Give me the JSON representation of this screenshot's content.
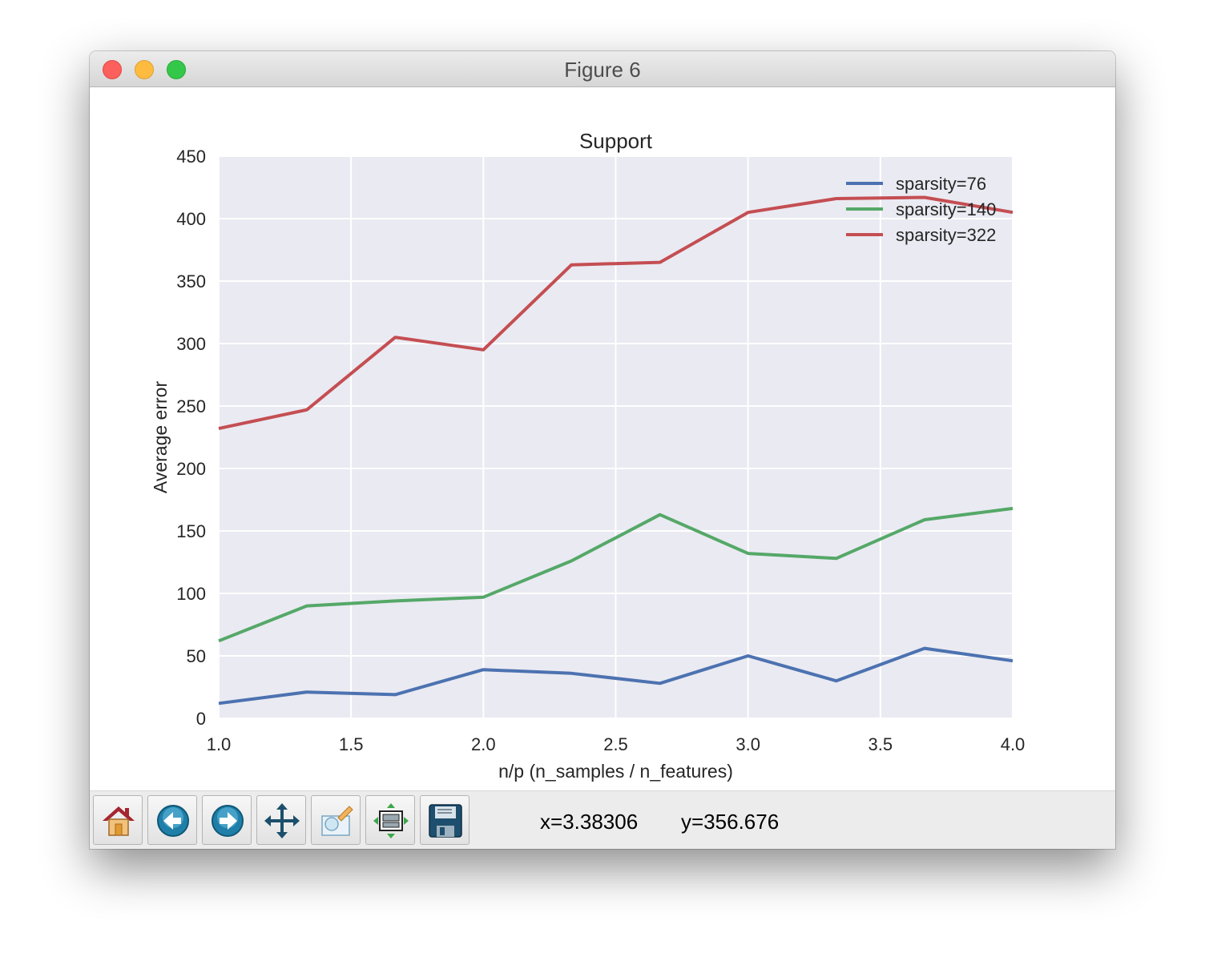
{
  "window": {
    "title": "Figure 6"
  },
  "toolbar": {
    "buttons": [
      {
        "name": "home",
        "icon": "home-icon"
      },
      {
        "name": "back",
        "icon": "back-arrow-icon"
      },
      {
        "name": "forward",
        "icon": "forward-arrow-icon"
      },
      {
        "name": "pan",
        "icon": "move-icon"
      },
      {
        "name": "zoom",
        "icon": "zoom-rect-icon"
      },
      {
        "name": "subplots",
        "icon": "subplots-config-icon"
      },
      {
        "name": "save",
        "icon": "save-floppy-icon"
      }
    ],
    "x_readout": "x=3.38306",
    "y_readout": "y=356.676"
  },
  "colors": {
    "plot_bg": "#EAEAF2",
    "grid": "#FFFFFF",
    "text": "#262626"
  },
  "chart_data": {
    "type": "line",
    "title": "Support",
    "xlabel": "n/p (n_samples / n_features)",
    "ylabel": "Average error",
    "xlim": [
      1.0,
      4.0
    ],
    "ylim": [
      0,
      450
    ],
    "xticks": [
      "1.0",
      "1.5",
      "2.0",
      "2.5",
      "3.0",
      "3.5",
      "4.0"
    ],
    "yticks": [
      "0",
      "50",
      "100",
      "150",
      "200",
      "250",
      "300",
      "350",
      "400",
      "450"
    ],
    "grid": true,
    "legend_position": "top-right",
    "x": [
      1.0,
      1.333,
      1.667,
      2.0,
      2.333,
      2.667,
      3.0,
      3.333,
      3.667,
      4.0
    ],
    "series": [
      {
        "name": "sparsity=76",
        "color": "#4C72B0",
        "values": [
          12,
          21,
          19,
          39,
          36,
          28,
          50,
          30,
          56,
          46
        ]
      },
      {
        "name": "sparsity=140",
        "color": "#55A868",
        "values": [
          62,
          90,
          94,
          97,
          126,
          163,
          132,
          128,
          159,
          168
        ]
      },
      {
        "name": "sparsity=322",
        "color": "#C44E52",
        "values": [
          232,
          247,
          305,
          295,
          363,
          365,
          405,
          416,
          417,
          405
        ]
      }
    ]
  }
}
